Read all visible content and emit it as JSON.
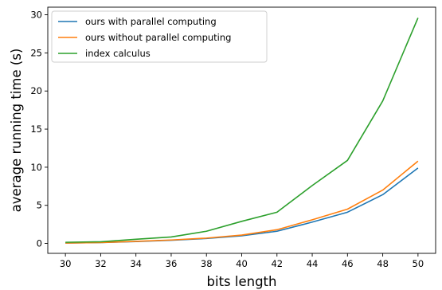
{
  "chart_data": {
    "type": "line",
    "title": "",
    "xlabel": "bits length",
    "ylabel": "average running time (s)",
    "x": [
      30,
      32,
      34,
      36,
      38,
      40,
      42,
      44,
      46,
      48,
      50
    ],
    "xlim": [
      29,
      51
    ],
    "ylim": [
      -1.3,
      31
    ],
    "xticks": [
      30,
      32,
      34,
      36,
      38,
      40,
      42,
      44,
      46,
      48,
      50
    ],
    "yticks": [
      0,
      5,
      10,
      15,
      20,
      25,
      30
    ],
    "grid": false,
    "legend_position": "top-left",
    "series": [
      {
        "name": "ours with parallel computing",
        "color": "#1f77b4",
        "values": [
          0.05,
          0.12,
          0.25,
          0.42,
          0.65,
          1.0,
          1.6,
          2.8,
          4.1,
          6.4,
          9.9
        ]
      },
      {
        "name": "ours without parallel computing",
        "color": "#ff7f0e",
        "values": [
          0.05,
          0.12,
          0.27,
          0.45,
          0.7,
          1.1,
          1.8,
          3.1,
          4.5,
          7.0,
          10.8
        ]
      },
      {
        "name": "index calculus",
        "color": "#2ca02c",
        "values": [
          0.15,
          0.22,
          0.55,
          0.85,
          1.6,
          2.9,
          4.1,
          7.6,
          10.9,
          18.7,
          29.6
        ]
      }
    ]
  }
}
